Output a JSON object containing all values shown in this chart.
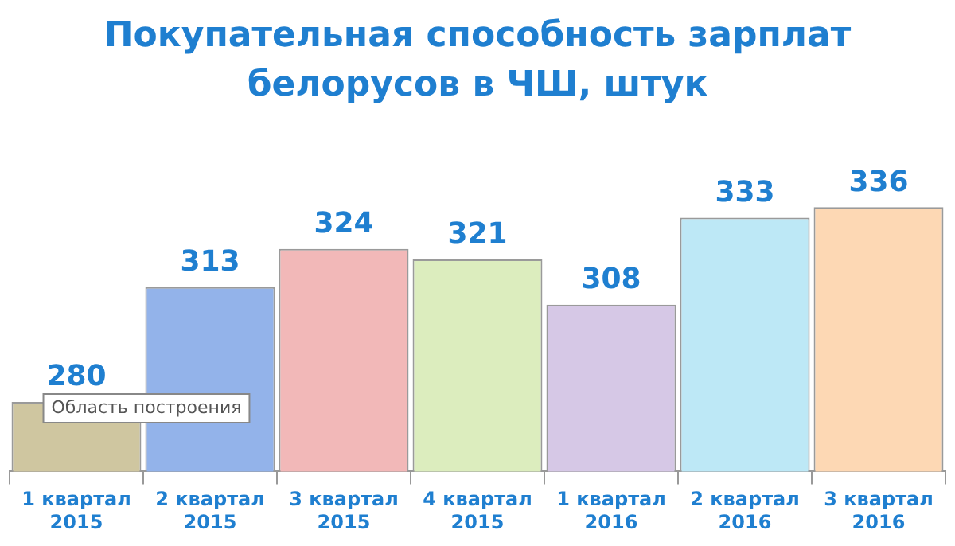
{
  "chart_data": {
    "type": "bar",
    "title": "Покупательная способность зарплат белорусов в ЧШ, штук",
    "categories": [
      "1 квартал 2015",
      "2 квартал 2015",
      "3 квартал 2015",
      "4 квартал 2015",
      "1 квартал 2016",
      "2 квартал 2016",
      "3 квартал 2016"
    ],
    "values": [
      280,
      313,
      324,
      321,
      308,
      333,
      336
    ],
    "colors": [
      "#cfc6a0",
      "#93b3ea",
      "#f2b8b8",
      "#dcedbe",
      "#d6c8e6",
      "#bde8f6",
      "#fdd8b4"
    ],
    "data_labels": true,
    "grid": false,
    "legend": false,
    "annotations": [
      "Область построения"
    ]
  }
}
